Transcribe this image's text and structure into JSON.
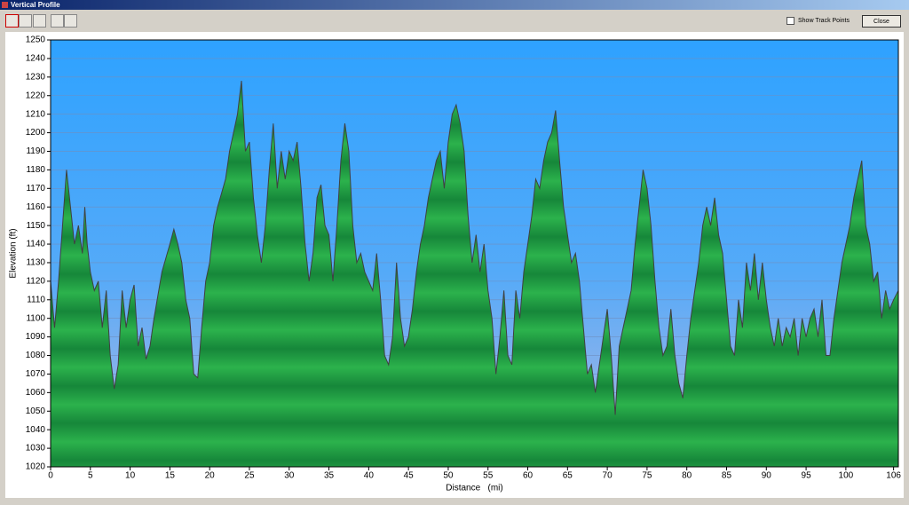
{
  "window": {
    "title": "Vertical Profile"
  },
  "toolbar": {
    "show_track_points": "Show Track Points",
    "close": "Close"
  },
  "chart_data": {
    "type": "area",
    "xlabel": "Distance   (mi)",
    "ylabel": "Elevation (ft)",
    "color": "#1e9e3e",
    "line_color": "#404040",
    "grid": true,
    "xlim": [
      0,
      106.6
    ],
    "ylim": [
      1020,
      1250
    ],
    "xticks": [
      0,
      5,
      10,
      15,
      20,
      25,
      30,
      35,
      40,
      45,
      50,
      55,
      60,
      65,
      70,
      75,
      80,
      85,
      90,
      95,
      100,
      106
    ],
    "yticks": [
      1020,
      1030,
      1040,
      1050,
      1060,
      1070,
      1080,
      1090,
      1100,
      1110,
      1120,
      1130,
      1140,
      1150,
      1160,
      1170,
      1180,
      1190,
      1200,
      1210,
      1220,
      1230,
      1240,
      1250
    ],
    "x": [
      0,
      0.5,
      1,
      1.5,
      2,
      2.5,
      3,
      3.5,
      4,
      4.3,
      4.6,
      5,
      5.5,
      6,
      6.5,
      7,
      7.5,
      8,
      8.5,
      9,
      9.5,
      10,
      10.5,
      11,
      11.5,
      12,
      12.5,
      13,
      14,
      15,
      15.5,
      16,
      16.5,
      17,
      17.5,
      18,
      18.5,
      19,
      19.5,
      20,
      20.5,
      21,
      22,
      22.5,
      23,
      23.5,
      24,
      24.5,
      25,
      25.5,
      26,
      26.5,
      27,
      27.5,
      28,
      28.5,
      29,
      29.5,
      30,
      30.5,
      31,
      31.5,
      32,
      32.5,
      33,
      33.5,
      34,
      34.5,
      35,
      35.5,
      36,
      36.5,
      37,
      37.5,
      38,
      38.5,
      39,
      39.5,
      40,
      40.5,
      41,
      41.5,
      42,
      42.5,
      43,
      43.5,
      44,
      44.5,
      45,
      45.5,
      46,
      46.5,
      47,
      47.5,
      48,
      48.5,
      49,
      49.5,
      50,
      50.5,
      51,
      51.5,
      52,
      52.5,
      53,
      53.5,
      54,
      54.5,
      55,
      55.5,
      56,
      56.5,
      57,
      57.5,
      58,
      58.5,
      59,
      59.5,
      60,
      60.5,
      61,
      61.5,
      62,
      62.5,
      63,
      63.5,
      64,
      64.5,
      65,
      65.5,
      66,
      66.5,
      67,
      67.5,
      68,
      68.5,
      69,
      69.5,
      70,
      70.5,
      71,
      71.5,
      72,
      72.5,
      73,
      73.5,
      74,
      74.5,
      75,
      75.5,
      76,
      76.5,
      77,
      77.5,
      78,
      78.5,
      79,
      79.5,
      80,
      80.5,
      81,
      81.5,
      82,
      82.5,
      83,
      83.5,
      84,
      84.5,
      85,
      85.5,
      86,
      86.5,
      87,
      87.5,
      88,
      88.5,
      89,
      89.5,
      90,
      90.5,
      91,
      91.5,
      92,
      92.5,
      93,
      93.5,
      94,
      94.5,
      95,
      95.5,
      96,
      96.5,
      97,
      97.5,
      98,
      98.5,
      99,
      99.5,
      100,
      100.5,
      101,
      101.5,
      102,
      102.5,
      103,
      103.5,
      104,
      104.5,
      105,
      105.5,
      106,
      106.6
    ],
    "values": [
      1120,
      1095,
      1120,
      1150,
      1180,
      1160,
      1140,
      1150,
      1135,
      1160,
      1140,
      1125,
      1115,
      1120,
      1095,
      1115,
      1080,
      1062,
      1075,
      1115,
      1095,
      1110,
      1118,
      1085,
      1095,
      1078,
      1085,
      1100,
      1125,
      1140,
      1148,
      1140,
      1130,
      1110,
      1100,
      1070,
      1068,
      1095,
      1120,
      1130,
      1150,
      1160,
      1175,
      1190,
      1200,
      1210,
      1228,
      1190,
      1195,
      1165,
      1145,
      1130,
      1150,
      1180,
      1205,
      1170,
      1190,
      1175,
      1190,
      1185,
      1195,
      1170,
      1140,
      1120,
      1135,
      1165,
      1172,
      1150,
      1145,
      1120,
      1150,
      1185,
      1205,
      1190,
      1150,
      1130,
      1135,
      1125,
      1120,
      1115,
      1135,
      1110,
      1080,
      1075,
      1090,
      1130,
      1100,
      1085,
      1090,
      1105,
      1125,
      1140,
      1150,
      1165,
      1175,
      1185,
      1190,
      1170,
      1195,
      1210,
      1215,
      1205,
      1190,
      1155,
      1130,
      1145,
      1125,
      1140,
      1115,
      1100,
      1070,
      1090,
      1115,
      1080,
      1075,
      1115,
      1100,
      1125,
      1140,
      1155,
      1175,
      1170,
      1185,
      1195,
      1200,
      1212,
      1185,
      1160,
      1145,
      1130,
      1135,
      1120,
      1095,
      1070,
      1075,
      1060,
      1075,
      1090,
      1105,
      1080,
      1048,
      1085,
      1095,
      1105,
      1115,
      1140,
      1160,
      1180,
      1170,
      1150,
      1120,
      1095,
      1080,
      1085,
      1105,
      1080,
      1065,
      1057,
      1080,
      1100,
      1115,
      1130,
      1150,
      1160,
      1150,
      1165,
      1145,
      1135,
      1110,
      1085,
      1080,
      1110,
      1095,
      1130,
      1115,
      1135,
      1110,
      1130,
      1110,
      1095,
      1085,
      1100,
      1085,
      1095,
      1090,
      1100,
      1080,
      1100,
      1090,
      1100,
      1105,
      1090,
      1110,
      1080,
      1080,
      1100,
      1115,
      1130,
      1140,
      1150,
      1165,
      1175,
      1185,
      1150,
      1140,
      1120,
      1125,
      1100,
      1115,
      1105,
      1110,
      1115
    ]
  }
}
